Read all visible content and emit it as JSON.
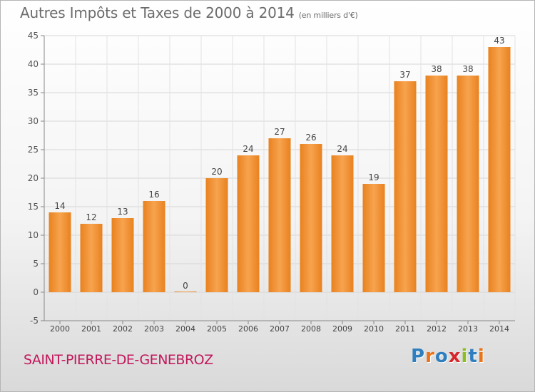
{
  "header": {
    "title": "Autres Impôts et Taxes de 2000 à 2014",
    "subtitle": "(en milliers d'€)"
  },
  "footer": {
    "commune": "SAINT-PIERRE-DE-GENEBROZ",
    "logo_text": "Proxiti",
    "logo_letters": [
      {
        "ch": "P",
        "color": "#2e7fc0"
      },
      {
        "ch": "r",
        "color": "#e8731a"
      },
      {
        "ch": "o",
        "color": "#2e7fc0"
      },
      {
        "ch": "x",
        "color": "#d6262a"
      },
      {
        "ch": "i",
        "color": "#8cbe22"
      },
      {
        "ch": "t",
        "color": "#2e7fc0"
      },
      {
        "ch": "i",
        "color": "#e8731a"
      }
    ]
  },
  "chart_data": {
    "type": "bar",
    "title": "Autres Impôts et Taxes de 2000 à 2014",
    "subtitle": "(en milliers d'€)",
    "categories": [
      "2000",
      "2001",
      "2002",
      "2003",
      "2004",
      "2005",
      "2006",
      "2007",
      "2008",
      "2009",
      "2010",
      "2011",
      "2012",
      "2013",
      "2014"
    ],
    "values": [
      14,
      12,
      13,
      16,
      0,
      20,
      24,
      27,
      26,
      24,
      19,
      37,
      38,
      38,
      43
    ],
    "ylim": [
      -5,
      45
    ],
    "yticks": [
      -5,
      0,
      5,
      10,
      15,
      20,
      25,
      30,
      35,
      40,
      45
    ],
    "grid": true,
    "bar_color": "#e8821f",
    "bar_color_light": "#f7a34f"
  }
}
